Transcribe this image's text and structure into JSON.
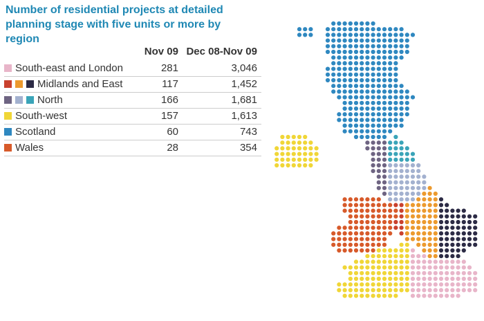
{
  "title": "Number of residential projects at detailed planning stage with five units or more by region",
  "table": {
    "columns": [
      "Nov 09",
      "Dec 08-Nov 09"
    ],
    "rows": [
      {
        "label": "South-east and London",
        "values": [
          "281",
          "3,046"
        ],
        "colors": [
          "#e8b5c9"
        ]
      },
      {
        "label": "Midlands and East",
        "values": [
          "117",
          "1,452"
        ],
        "colors": [
          "#c9412e",
          "#ec9a2e",
          "#2c2b45"
        ]
      },
      {
        "label": "North",
        "values": [
          "166",
          "1,681"
        ],
        "colors": [
          "#6e6482",
          "#a3b1cf",
          "#3aa4b8"
        ]
      },
      {
        "label": "South-west",
        "values": [
          "157",
          "1,613"
        ],
        "colors": [
          "#f0d637"
        ]
      },
      {
        "label": "Scotland",
        "values": [
          "60",
          "743"
        ],
        "colors": [
          "#2f88c0"
        ]
      },
      {
        "label": "Wales",
        "values": [
          "28",
          "354"
        ],
        "colors": [
          "#d75a2a"
        ]
      }
    ]
  }
}
